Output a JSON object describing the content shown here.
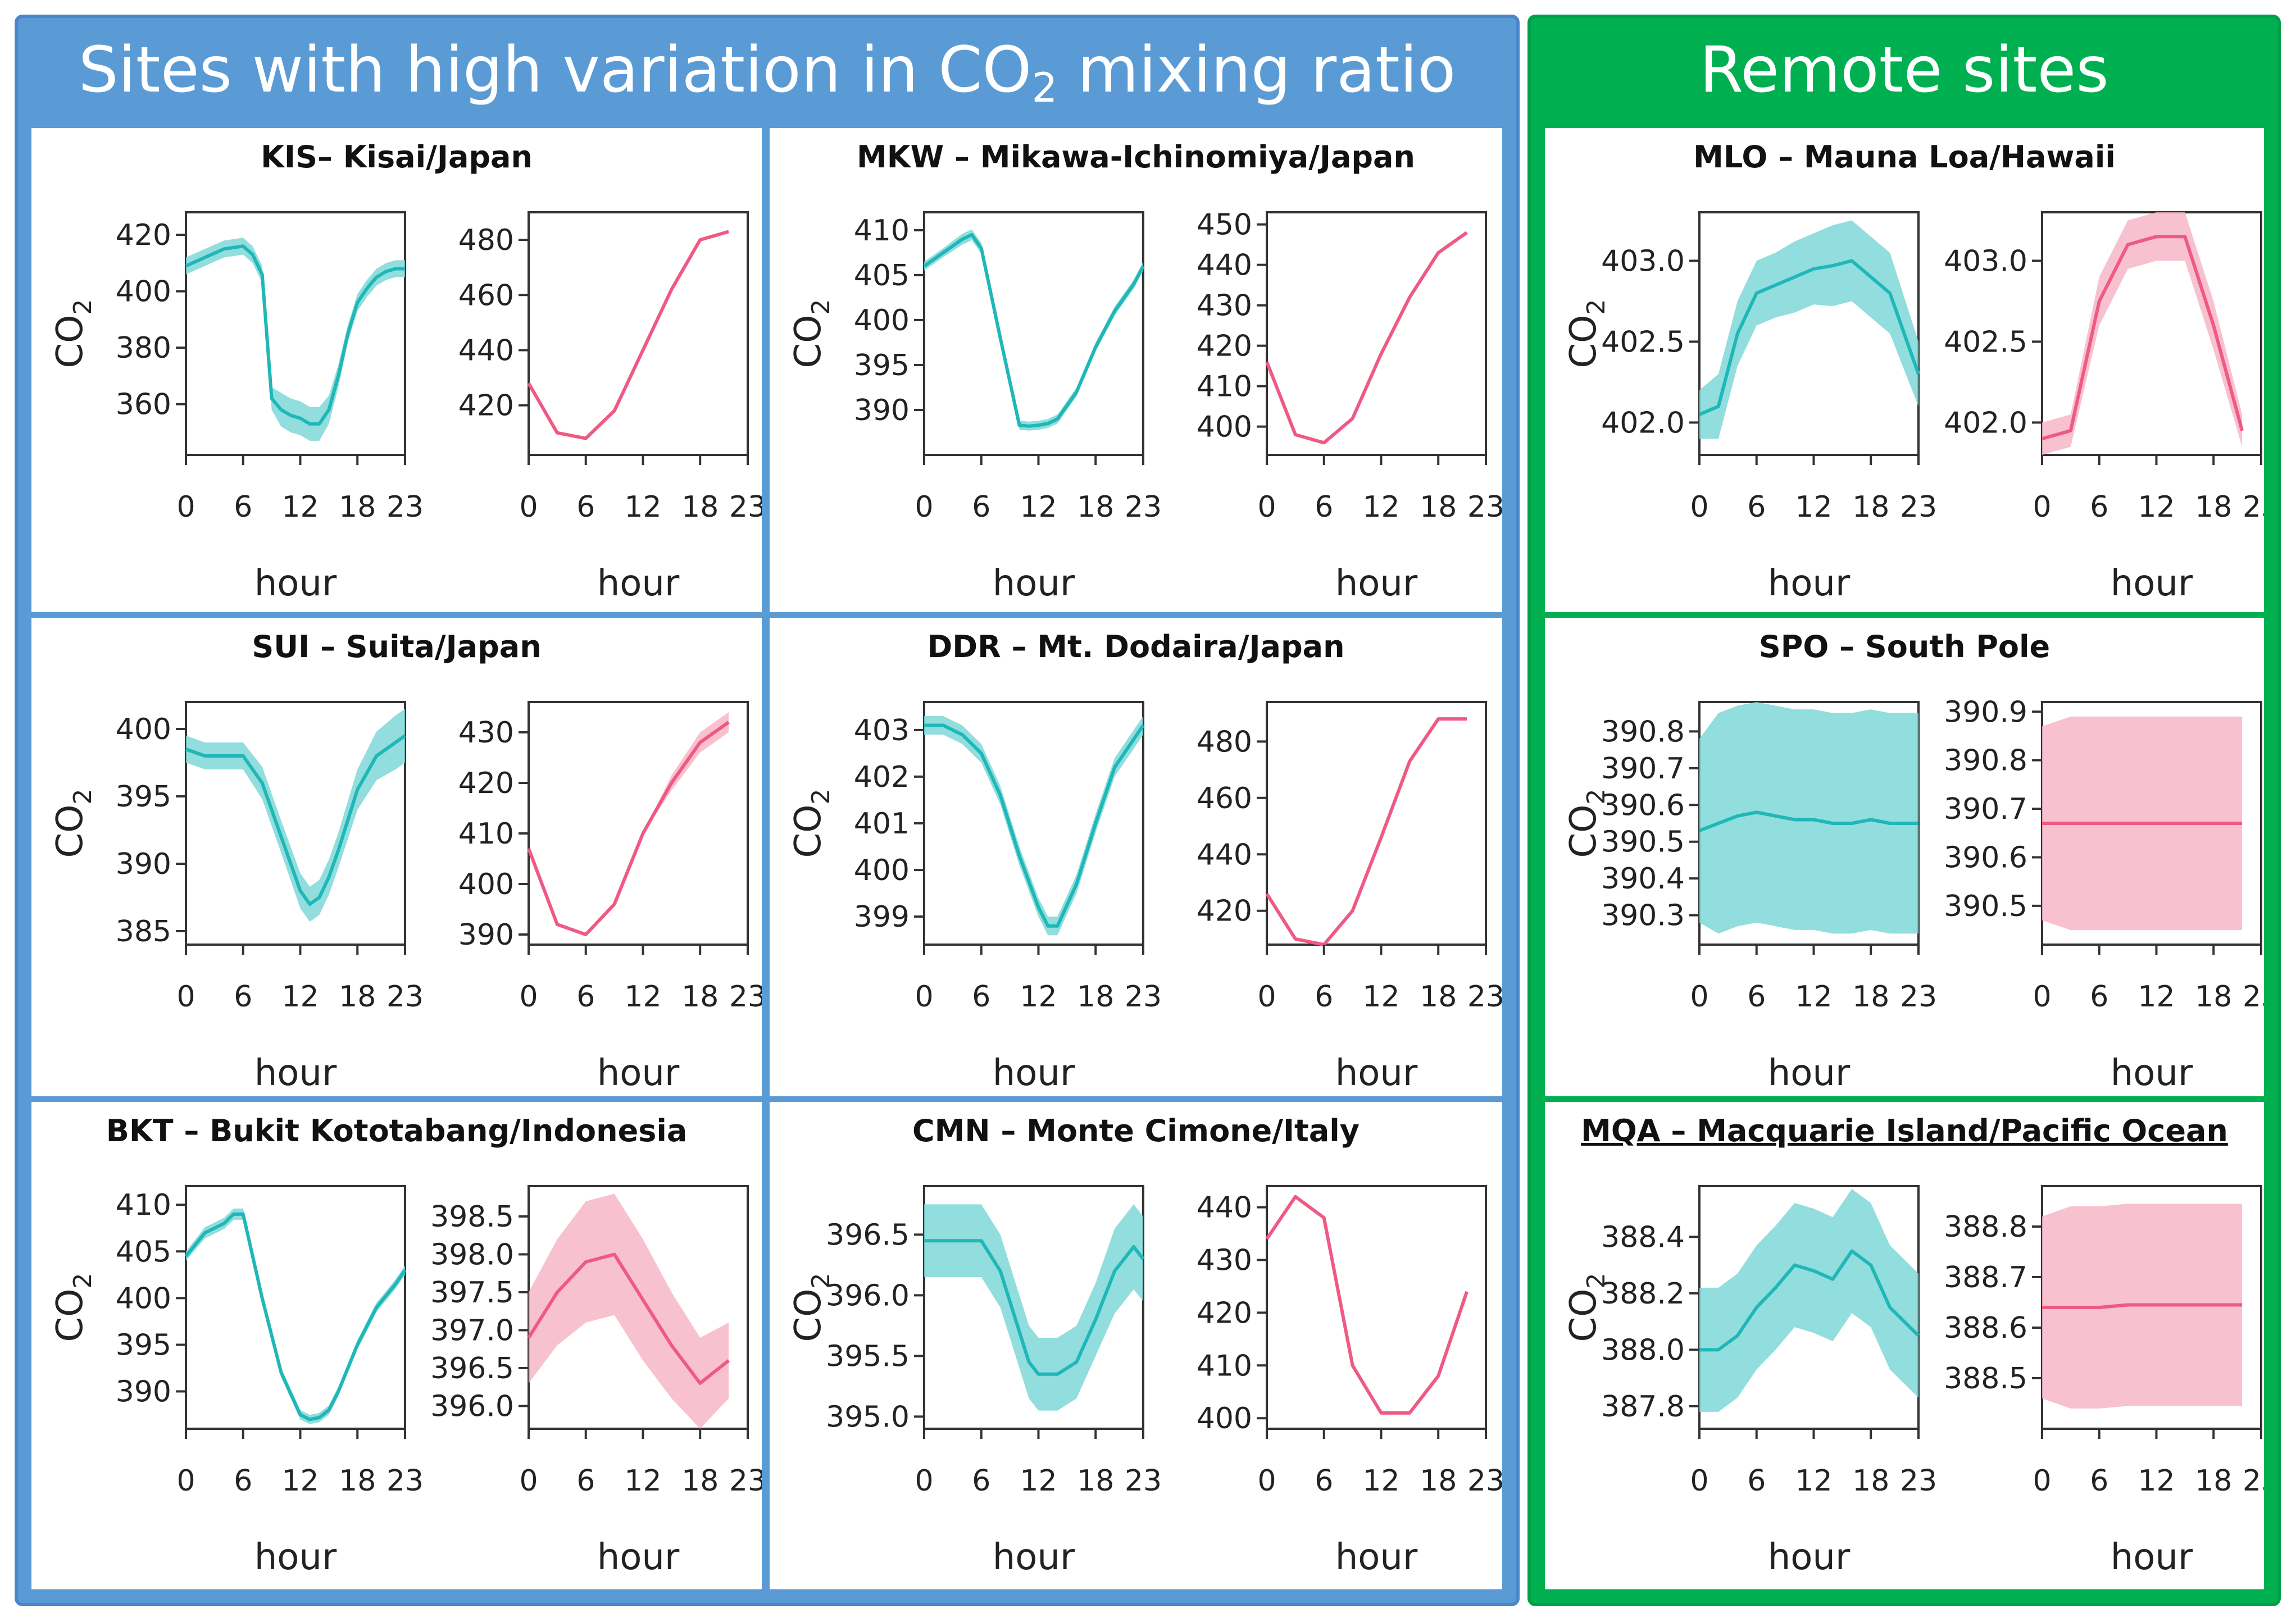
{
  "groups": {
    "high": {
      "title_pre": "Sites with high variation in CO",
      "title_sub": "2",
      "title_post": " mixing ratio",
      "color": "#5b9bd5"
    },
    "remote": {
      "title": "Remote sites",
      "color": "#00b050"
    }
  },
  "colors": {
    "cyan_line": "#1fb7b7",
    "cyan_band": "#7fd7d7",
    "pink_line": "#ee5a84",
    "pink_band": "#f7b6c8"
  },
  "common": {
    "ylabel_main": "CO",
    "ylabel_sub": "2",
    "xlabel": "hour",
    "xticks": [
      0,
      6,
      12,
      18,
      23
    ]
  },
  "chart_data": [
    {
      "id": "KIS",
      "title": "KIS– Kisai/Japan",
      "type": "line",
      "left": {
        "ylim": [
          342,
          428
        ],
        "yticks": [
          360,
          380,
          400,
          420
        ],
        "ydecimals": 0,
        "x": [
          0,
          2,
          4,
          6,
          7,
          8,
          9,
          10,
          11,
          12,
          13,
          14,
          15,
          16,
          17,
          18,
          19,
          20,
          21,
          22,
          23
        ],
        "y": [
          409,
          412,
          415,
          416,
          413,
          406,
          362,
          358,
          356,
          355,
          353,
          353,
          358,
          370,
          385,
          396,
          401,
          405,
          407,
          408,
          408
        ],
        "err": [
          3,
          3,
          3,
          3,
          3,
          3,
          4,
          6,
          6,
          6,
          6,
          6,
          5,
          4,
          3,
          3,
          3,
          3,
          3,
          3,
          3
        ]
      },
      "right": {
        "ylim": [
          402,
          490
        ],
        "yticks": [
          420,
          440,
          460,
          480
        ],
        "ydecimals": 0,
        "x": [
          0,
          3,
          6,
          9,
          12,
          15,
          18,
          21
        ],
        "y": [
          428,
          410,
          408,
          418,
          440,
          462,
          480,
          483
        ],
        "err": null
      }
    },
    {
      "id": "MKW",
      "title": "MKW – Mikawa-Ichinomiya/Japan",
      "type": "line",
      "left": {
        "ylim": [
          385,
          412
        ],
        "yticks": [
          390,
          395,
          400,
          405,
          410
        ],
        "ydecimals": 0,
        "x": [
          0,
          2,
          4,
          5,
          6,
          8,
          10,
          11,
          12,
          13,
          14,
          16,
          18,
          20,
          22,
          23
        ],
        "y": [
          406,
          407.5,
          409,
          409.5,
          408,
          398,
          388.3,
          388.2,
          388.3,
          388.5,
          389,
          392,
          397,
          401,
          404,
          406
        ],
        "err": [
          0.5,
          0.5,
          0.6,
          0.6,
          0.6,
          0.6,
          0.5,
          0.5,
          0.5,
          0.5,
          0.5,
          0.5,
          0.5,
          0.5,
          0.5,
          0.5
        ]
      },
      "right": {
        "ylim": [
          393,
          453
        ],
        "yticks": [
          400,
          410,
          420,
          430,
          440,
          450
        ],
        "ydecimals": 0,
        "x": [
          0,
          3,
          6,
          9,
          12,
          15,
          18,
          21
        ],
        "y": [
          416,
          398,
          396,
          402,
          418,
          432,
          443,
          448
        ],
        "err": null
      }
    },
    {
      "id": "MLO",
      "title": "MLO – Mauna Loa/Hawaii",
      "type": "line",
      "left": {
        "ylim": [
          401.8,
          403.3
        ],
        "yticks": [
          402.0,
          402.5,
          403.0
        ],
        "ydecimals": 1,
        "x": [
          0,
          2,
          4,
          6,
          8,
          10,
          12,
          14,
          16,
          18,
          20,
          23
        ],
        "y": [
          402.05,
          402.1,
          402.55,
          402.8,
          402.85,
          402.9,
          402.95,
          402.97,
          403.0,
          402.9,
          402.8,
          402.3
        ],
        "err": [
          0.15,
          0.2,
          0.2,
          0.2,
          0.2,
          0.22,
          0.22,
          0.25,
          0.25,
          0.25,
          0.25,
          0.2
        ]
      },
      "right": {
        "ylim": [
          401.8,
          403.3
        ],
        "yticks": [
          402.0,
          402.5,
          403.0
        ],
        "ydecimals": 1,
        "x": [
          0,
          3,
          6,
          9,
          12,
          15,
          18,
          21
        ],
        "y": [
          401.9,
          401.95,
          402.75,
          403.1,
          403.15,
          403.15,
          402.6,
          401.95
        ],
        "err": [
          0.1,
          0.1,
          0.15,
          0.15,
          0.15,
          0.15,
          0.15,
          0.1
        ]
      }
    },
    {
      "id": "SUI",
      "title": "SUI – Suita/Japan",
      "type": "line",
      "left": {
        "ylim": [
          384,
          402
        ],
        "yticks": [
          385,
          390,
          395,
          400
        ],
        "ydecimals": 0,
        "x": [
          0,
          2,
          4,
          6,
          8,
          10,
          12,
          13,
          14,
          15,
          16,
          18,
          20,
          22,
          23
        ],
        "y": [
          398.5,
          398,
          398,
          398,
          396,
          392,
          388,
          387,
          387.5,
          389,
          391,
          395.5,
          398,
          399,
          399.5
        ],
        "err": [
          1,
          1,
          1,
          1,
          1.2,
          1.2,
          1.3,
          1.3,
          1.3,
          1.3,
          1.3,
          1.5,
          1.8,
          2,
          2
        ]
      },
      "right": {
        "ylim": [
          388,
          436
        ],
        "yticks": [
          390,
          400,
          410,
          420,
          430
        ],
        "ydecimals": 0,
        "x": [
          0,
          3,
          6,
          9,
          12,
          15,
          18,
          21
        ],
        "y": [
          407,
          392,
          390,
          396,
          410,
          420,
          428,
          432
        ],
        "err": [
          0,
          0,
          0,
          0,
          0,
          1.5,
          2,
          2
        ]
      }
    },
    {
      "id": "DDR",
      "title": "DDR – Mt. Dodaira/Japan",
      "type": "line",
      "left": {
        "ylim": [
          398.4,
          403.6
        ],
        "yticks": [
          399,
          400,
          401,
          402,
          403
        ],
        "ydecimals": 0,
        "x": [
          0,
          2,
          4,
          6,
          8,
          10,
          12,
          13,
          14,
          16,
          18,
          20,
          22,
          23
        ],
        "y": [
          403.1,
          403.1,
          402.9,
          402.5,
          401.6,
          400.3,
          399.2,
          398.8,
          398.8,
          399.7,
          401,
          402.2,
          402.8,
          403.1
        ],
        "err": [
          0.2,
          0.2,
          0.2,
          0.2,
          0.2,
          0.2,
          0.2,
          0.2,
          0.2,
          0.2,
          0.2,
          0.2,
          0.2,
          0.2
        ]
      },
      "right": {
        "ylim": [
          408,
          494
        ],
        "yticks": [
          420,
          440,
          460,
          480
        ],
        "ydecimals": 0,
        "x": [
          0,
          3,
          6,
          9,
          12,
          15,
          18,
          21
        ],
        "y": [
          426,
          410,
          408,
          420,
          446,
          473,
          488,
          488
        ],
        "err": null
      }
    },
    {
      "id": "SPO",
      "title": "SPO – South Pole",
      "type": "line",
      "left": {
        "ylim": [
          390.22,
          390.88
        ],
        "yticks": [
          390.3,
          390.4,
          390.5,
          390.6,
          390.7,
          390.8
        ],
        "ydecimals": 1,
        "x": [
          0,
          2,
          4,
          6,
          8,
          10,
          12,
          14,
          16,
          18,
          20,
          23
        ],
        "y": [
          390.53,
          390.55,
          390.57,
          390.58,
          390.57,
          390.56,
          390.56,
          390.55,
          390.55,
          390.56,
          390.55,
          390.55
        ],
        "err": [
          0.25,
          0.3,
          0.3,
          0.3,
          0.3,
          0.3,
          0.3,
          0.3,
          0.3,
          0.3,
          0.3,
          0.3
        ]
      },
      "right": {
        "ylim": [
          390.42,
          390.92
        ],
        "yticks": [
          390.5,
          390.6,
          390.7,
          390.8,
          390.9
        ],
        "ydecimals": 1,
        "x": [
          0,
          3,
          6,
          9,
          12,
          15,
          18,
          21
        ],
        "y": [
          390.67,
          390.67,
          390.67,
          390.67,
          390.67,
          390.67,
          390.67,
          390.67
        ],
        "err": [
          0.2,
          0.22,
          0.22,
          0.22,
          0.22,
          0.22,
          0.22,
          0.22
        ]
      }
    },
    {
      "id": "BKT",
      "title": "BKT – Bukit Kototabang/Indonesia",
      "type": "line",
      "left": {
        "ylim": [
          386,
          412
        ],
        "yticks": [
          390,
          395,
          400,
          405,
          410
        ],
        "ydecimals": 0,
        "x": [
          0,
          2,
          4,
          5,
          6,
          8,
          10,
          12,
          13,
          14,
          15,
          16,
          18,
          20,
          22,
          23
        ],
        "y": [
          404.5,
          407,
          408,
          409,
          409,
          400,
          392,
          387.5,
          387,
          387.2,
          388,
          390,
          395,
          399,
          401.5,
          403
        ],
        "err": [
          0.5,
          0.6,
          0.6,
          0.6,
          0.6,
          0.5,
          0.5,
          0.5,
          0.5,
          0.5,
          0.5,
          0.5,
          0.5,
          0.5,
          0.5,
          0.5
        ]
      },
      "right": {
        "ylim": [
          395.7,
          398.9
        ],
        "yticks": [
          396.0,
          396.5,
          397.0,
          397.5,
          398.0,
          398.5
        ],
        "ydecimals": 1,
        "x": [
          0,
          3,
          6,
          9,
          12,
          15,
          18,
          21
        ],
        "y": [
          396.9,
          397.5,
          397.9,
          398.0,
          397.4,
          396.8,
          396.3,
          396.6
        ],
        "err": [
          0.6,
          0.7,
          0.8,
          0.8,
          0.8,
          0.7,
          0.6,
          0.5
        ]
      }
    },
    {
      "id": "CMN",
      "title": "CMN – Monte Cimone/Italy",
      "type": "line",
      "left": {
        "ylim": [
          394.9,
          396.9
        ],
        "yticks": [
          395.0,
          395.5,
          396.0,
          396.5
        ],
        "ydecimals": 1,
        "x": [
          0,
          2,
          4,
          6,
          8,
          10,
          11,
          12,
          13,
          14,
          15,
          16,
          18,
          20,
          22,
          23
        ],
        "y": [
          396.45,
          396.45,
          396.45,
          396.45,
          396.2,
          395.7,
          395.45,
          395.35,
          395.35,
          395.35,
          395.4,
          395.45,
          395.8,
          396.2,
          396.4,
          396.3
        ],
        "err": [
          0.3,
          0.3,
          0.3,
          0.3,
          0.3,
          0.3,
          0.3,
          0.3,
          0.3,
          0.3,
          0.3,
          0.3,
          0.3,
          0.35,
          0.35,
          0.35
        ]
      },
      "right": {
        "ylim": [
          398,
          444
        ],
        "yticks": [
          400,
          410,
          420,
          430,
          440
        ],
        "ydecimals": 0,
        "x": [
          0,
          3,
          6,
          9,
          12,
          15,
          18,
          21
        ],
        "y": [
          434,
          442,
          438,
          410,
          401,
          401,
          408,
          424
        ],
        "err": null
      }
    },
    {
      "id": "MQA",
      "title": "MQA – Macquarie Island/Pacific Ocean",
      "type": "line",
      "underline": true,
      "left": {
        "ylim": [
          387.72,
          388.58
        ],
        "yticks": [
          387.8,
          388.0,
          388.2,
          388.4
        ],
        "ydecimals": 1,
        "x": [
          0,
          2,
          4,
          6,
          8,
          10,
          12,
          14,
          16,
          18,
          20,
          23
        ],
        "y": [
          388.0,
          388.0,
          388.05,
          388.15,
          388.22,
          388.3,
          388.28,
          388.25,
          388.35,
          388.3,
          388.15,
          388.05
        ],
        "err": [
          0.22,
          0.22,
          0.22,
          0.22,
          0.22,
          0.22,
          0.22,
          0.22,
          0.22,
          0.22,
          0.22,
          0.22
        ]
      },
      "right": {
        "ylim": [
          388.4,
          388.88
        ],
        "yticks": [
          388.5,
          388.6,
          388.7,
          388.8
        ],
        "ydecimals": 1,
        "x": [
          0,
          3,
          6,
          9,
          12,
          15,
          18,
          21
        ],
        "y": [
          388.64,
          388.64,
          388.64,
          388.645,
          388.645,
          388.645,
          388.645,
          388.645
        ],
        "err": [
          0.18,
          0.2,
          0.2,
          0.2,
          0.2,
          0.2,
          0.2,
          0.2
        ]
      }
    }
  ]
}
